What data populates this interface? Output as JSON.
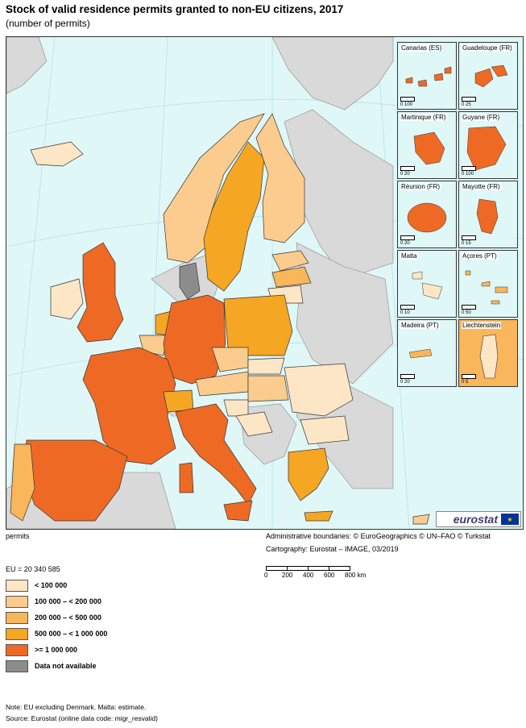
{
  "title": "Stock of valid residence permits granted to non-EU citizens, 2017",
  "subtitle": "(number of permits)",
  "colors": {
    "sea": "#e0f7f8",
    "non_eu_land": "#d9d9d9",
    "class1": "#fde6c6",
    "class2": "#fbcc8e",
    "class3": "#f9b65a",
    "class4": "#f5a623",
    "class5": "#ee6a24",
    "na": "#8c8c8c"
  },
  "insets": [
    {
      "label": "Canarias (ES)",
      "scale_left": "0",
      "scale_right": "100"
    },
    {
      "label": "Guadeloupe (FR)",
      "scale_left": "0",
      "scale_right": "25"
    },
    {
      "label": "Martinique (FR)",
      "scale_left": "0",
      "scale_right": "20"
    },
    {
      "label": "Guyane (FR)",
      "scale_left": "0",
      "scale_right": "100"
    },
    {
      "label": "Réunion (FR)",
      "scale_left": "0",
      "scale_right": "20"
    },
    {
      "label": "Mayotte (FR)",
      "scale_left": "0",
      "scale_right": "15"
    },
    {
      "label": "Malta",
      "scale_left": "0",
      "scale_right": "10"
    },
    {
      "label": "Açores (PT)",
      "scale_left": "0",
      "scale_right": "50"
    },
    {
      "label": "Madeira (PT)",
      "scale_left": "0",
      "scale_right": "20"
    },
    {
      "label": "Liechtenstein",
      "scale_left": "0",
      "scale_right": "5"
    }
  ],
  "logo_text": "eurostat",
  "unit_label": "permits",
  "admin_boundaries": "Administrative boundaries: © EuroGeographics © UN–FAO © Turkstat",
  "cartography": "Cartography: Eurostat – IMAGE, 03/2019",
  "scale_ticks": [
    "0",
    "200",
    "400",
    "600",
    "800 km"
  ],
  "eu_total": "EU = 20 340 585",
  "legend": [
    {
      "label": "< 100 000",
      "color": "#fde6c6"
    },
    {
      "label": "100 000 – < 200 000",
      "color": "#fbcc8e"
    },
    {
      "label": "200 000 – < 500 000",
      "color": "#f9b65a"
    },
    {
      "label": "500 000 – < 1 000 000",
      "color": "#f5a623"
    },
    {
      "label": ">= 1 000 000",
      "color": "#ee6a24"
    },
    {
      "label": "Data not available",
      "color": "#8c8c8c"
    }
  ],
  "note": "Note: EU excluding Denmark. Malta: estimate.",
  "source": "Source: Eurostat (online data code: migr_resvalid)"
}
